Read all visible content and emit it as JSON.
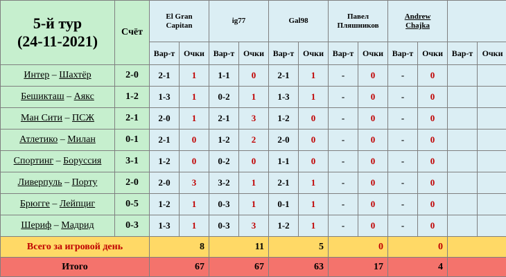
{
  "header": {
    "title_line1": "5-й тур",
    "title_line2": "(24-11-2021)",
    "score_label": "Счёт",
    "var_label": "Вар-т",
    "points_label": "Очки"
  },
  "players": [
    {
      "line1": "El Gran",
      "line2": "Capitan"
    },
    {
      "line1": "ig77",
      "line2": ""
    },
    {
      "line1": "Gal98",
      "line2": ""
    },
    {
      "line1": "Павел",
      "line2": "Пляшников"
    },
    {
      "line1": "Andrew",
      "line2": "Chajka"
    },
    {
      "line1": "",
      "line2": ""
    }
  ],
  "matches": [
    {
      "home": "Интер",
      "away": "Шахтёр",
      "score": "2-0",
      "picks": [
        {
          "v": "2-1",
          "p": "1"
        },
        {
          "v": "1-1",
          "p": "0"
        },
        {
          "v": "2-1",
          "p": "1"
        },
        {
          "v": "-",
          "p": "0"
        },
        {
          "v": "-",
          "p": "0"
        },
        {
          "v": "",
          "p": ""
        }
      ]
    },
    {
      "home": "Бешикташ",
      "away": "Аякс",
      "score": "1-2",
      "picks": [
        {
          "v": "1-3",
          "p": "1"
        },
        {
          "v": "0-2",
          "p": "1"
        },
        {
          "v": "1-3",
          "p": "1"
        },
        {
          "v": "-",
          "p": "0"
        },
        {
          "v": "-",
          "p": "0"
        },
        {
          "v": "",
          "p": ""
        }
      ]
    },
    {
      "home": "Ман Сити",
      "away": "ПСЖ",
      "score": "2-1",
      "picks": [
        {
          "v": "2-0",
          "p": "1"
        },
        {
          "v": "2-1",
          "p": "3"
        },
        {
          "v": "1-2",
          "p": "0"
        },
        {
          "v": "-",
          "p": "0"
        },
        {
          "v": "-",
          "p": "0"
        },
        {
          "v": "",
          "p": ""
        }
      ]
    },
    {
      "home": "Атлетико",
      "away": "Милан",
      "score": "0-1",
      "picks": [
        {
          "v": "2-1",
          "p": "0"
        },
        {
          "v": "1-2",
          "p": "2"
        },
        {
          "v": "2-0",
          "p": "0"
        },
        {
          "v": "-",
          "p": "0"
        },
        {
          "v": "-",
          "p": "0"
        },
        {
          "v": "",
          "p": ""
        }
      ]
    },
    {
      "home": "Спортинг",
      "away": "Боруссия",
      "score": "3-1",
      "picks": [
        {
          "v": "1-2",
          "p": "0"
        },
        {
          "v": "0-2",
          "p": "0"
        },
        {
          "v": "1-1",
          "p": "0"
        },
        {
          "v": "-",
          "p": "0"
        },
        {
          "v": "-",
          "p": "0"
        },
        {
          "v": "",
          "p": ""
        }
      ]
    },
    {
      "home": "Ливерпуль",
      "away": "Порту",
      "score": "2-0",
      "picks": [
        {
          "v": "2-0",
          "p": "3"
        },
        {
          "v": "3-2",
          "p": "1"
        },
        {
          "v": "2-1",
          "p": "1"
        },
        {
          "v": "-",
          "p": "0"
        },
        {
          "v": "-",
          "p": "0"
        },
        {
          "v": "",
          "p": ""
        }
      ]
    },
    {
      "home": "Брюгге",
      "away": "Лейпциг",
      "score": "0-5",
      "picks": [
        {
          "v": "1-2",
          "p": "1"
        },
        {
          "v": "0-3",
          "p": "1"
        },
        {
          "v": "0-1",
          "p": "1"
        },
        {
          "v": "-",
          "p": "0"
        },
        {
          "v": "-",
          "p": "0"
        },
        {
          "v": "",
          "p": ""
        }
      ]
    },
    {
      "home": "Шериф",
      "away": "Мадрид",
      "score": "0-3",
      "picks": [
        {
          "v": "1-3",
          "p": "1"
        },
        {
          "v": "0-3",
          "p": "3"
        },
        {
          "v": "1-2",
          "p": "1"
        },
        {
          "v": "-",
          "p": "0"
        },
        {
          "v": "-",
          "p": "0"
        },
        {
          "v": "",
          "p": ""
        }
      ]
    }
  ],
  "day_total": {
    "label": "Всего за игровой день",
    "values": [
      "8",
      "11",
      "5",
      "0",
      "0",
      ""
    ]
  },
  "grand_total": {
    "label": "Итого",
    "values": [
      "67",
      "67",
      "63",
      "17",
      "4",
      ""
    ]
  },
  "colors": {
    "green": "#c6efce",
    "blue": "#dbeef4",
    "yellow": "#ffd966",
    "red": "#f4736c",
    "points_text": "#c00000"
  }
}
